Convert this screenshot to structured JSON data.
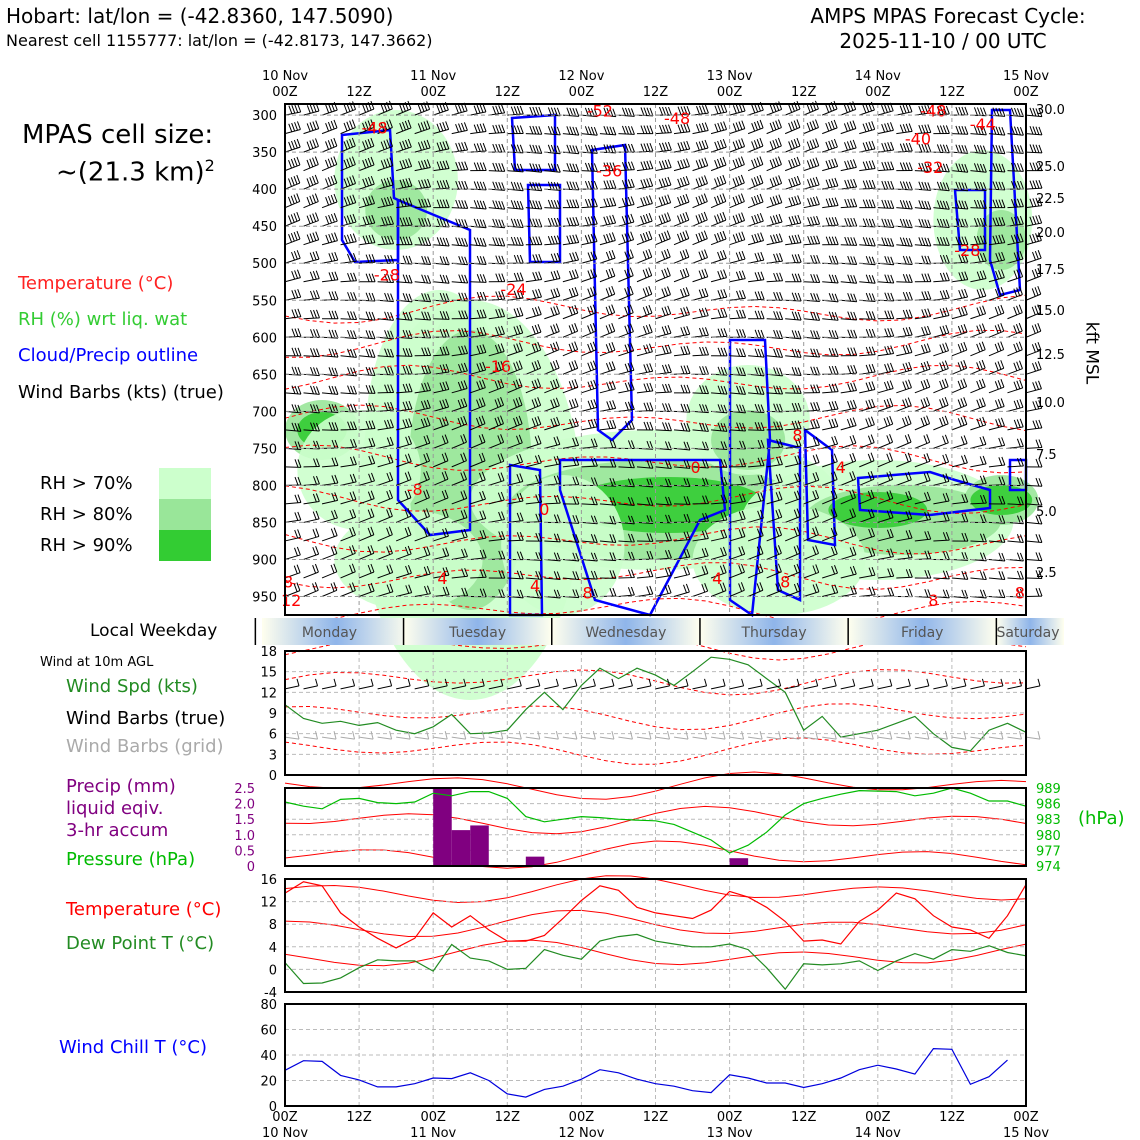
{
  "header": {
    "location_line": "Hobart: lat/lon = (-42.8360, 147.5090)",
    "cell_line": "Nearest cell 1155777: lat/lon = (-42.8173, 147.3662)",
    "forecast_title": "AMPS MPAS Forecast Cycle:",
    "forecast_cycle": "2025-11-10 / 00 UTC"
  },
  "cell_size": {
    "label": "MPAS cell size:",
    "value": "~(21.3 km)",
    "exponent": "2"
  },
  "legend": {
    "temperature": "Temperature (°C)",
    "rh": "RH (%) wrt liq. wat",
    "cloud": "Cloud/Precip outline",
    "wind": "Wind Barbs (kts) (true)",
    "rh70": "RH > 70%",
    "rh80": "RH > 80%",
    "rh90": "RH > 90%"
  },
  "colors": {
    "temp": "#ff0000",
    "rh": "#33cc33",
    "cloud": "#0000ff",
    "rh70": "#ccffcc",
    "rh80": "#99e699",
    "rh90": "#33cc33",
    "precip": "#800080",
    "pressure": "#00aa00",
    "windspd": "#228b22",
    "windchill": "#0000dd",
    "dewpoint": "#228b22",
    "grey": "#aaaaaa"
  },
  "weekday": {
    "label": "Local Weekday",
    "days": [
      "Monday",
      "Tuesday",
      "Wednesday",
      "Thursday",
      "Friday",
      "Saturday"
    ]
  },
  "panel2_legend": {
    "title": "Wind at 10m AGL",
    "spd": "Wind Spd (kts)",
    "barbs_true": "Wind Barbs (true)",
    "barbs_grid": "Wind Barbs (grid)"
  },
  "panel3_legend": {
    "precip1": "Precip (mm)",
    "precip2": "liquid eqiv.",
    "precip3": "3-hr accum",
    "pressure": "Pressure (hPa)",
    "unit": "(hPa)"
  },
  "panel4_legend": {
    "temp": "Temperature (°C)",
    "dew": "Dew Point T (°C)"
  },
  "panel5_legend": {
    "windchill": "Wind Chill T (°C)"
  },
  "chart_data": [
    {
      "type": "heatmap",
      "name": "cross-section",
      "x_ticks_top": [
        {
          "t": 0,
          "label": "10 Nov\n00Z"
        },
        {
          "t": 12,
          "label": "12Z"
        },
        {
          "t": 24,
          "label": "11 Nov\n00Z"
        },
        {
          "t": 36,
          "label": "12Z"
        },
        {
          "t": 48,
          "label": "12 Nov\n00Z"
        },
        {
          "t": 60,
          "label": "12Z"
        },
        {
          "t": 72,
          "label": "13 Nov\n00Z"
        },
        {
          "t": 84,
          "label": "12Z"
        },
        {
          "t": 96,
          "label": "14 Nov\n00Z"
        },
        {
          "t": 108,
          "label": "12Z"
        },
        {
          "t": 120,
          "label": "15 Nov\n00Z"
        }
      ],
      "y_ticks_hpa": [
        300,
        350,
        400,
        450,
        500,
        550,
        600,
        650,
        700,
        750,
        800,
        850,
        900,
        950
      ],
      "y_ticks_kft": [
        "30.0",
        "25.0",
        "22.5",
        "20.0",
        "17.5",
        "15.0",
        "12.5",
        "10.0",
        "7.5",
        "5.0",
        "2.5"
      ],
      "y_right_label": "kft MSL",
      "ylim_hpa": [
        285,
        975
      ],
      "temp_labels": [
        {
          "t": 14.5,
          "p": 325,
          "text": "-48"
        },
        {
          "t": 51,
          "p": 302,
          "text": "-52"
        },
        {
          "t": 63.5,
          "p": 312,
          "text": "-48"
        },
        {
          "t": 105,
          "p": 302,
          "text": "-48"
        },
        {
          "t": 113,
          "p": 320,
          "text": "-44"
        },
        {
          "t": 102.5,
          "p": 340,
          "text": "-40"
        },
        {
          "t": 52.5,
          "p": 383,
          "text": "-36"
        },
        {
          "t": 104.5,
          "p": 378,
          "text": "-32"
        },
        {
          "t": 110.5,
          "p": 490,
          "text": "-28"
        },
        {
          "t": 16.5,
          "p": 523,
          "text": "-28"
        },
        {
          "t": 37,
          "p": 543,
          "text": "-24"
        },
        {
          "t": 34.5,
          "p": 647,
          "text": "-16"
        },
        {
          "t": 66.5,
          "p": 783,
          "text": "0"
        },
        {
          "t": 21,
          "p": 813,
          "text": "-8"
        },
        {
          "t": 42,
          "p": 840,
          "text": "0"
        },
        {
          "t": 83,
          "p": 740,
          "text": "8"
        },
        {
          "t": 90,
          "p": 783,
          "text": "4"
        },
        {
          "t": 0.5,
          "p": 938,
          "text": "8"
        },
        {
          "t": 1,
          "p": 963,
          "text": "12"
        },
        {
          "t": 25.5,
          "p": 933,
          "text": "4"
        },
        {
          "t": 40.5,
          "p": 943,
          "text": "4"
        },
        {
          "t": 49,
          "p": 953,
          "text": "8"
        },
        {
          "t": 70,
          "p": 933,
          "text": "4"
        },
        {
          "t": 81,
          "p": 938,
          "text": "8"
        },
        {
          "t": 105,
          "p": 963,
          "text": "8"
        },
        {
          "t": 119,
          "p": 953,
          "text": "8"
        }
      ]
    },
    {
      "type": "line",
      "name": "wind-10m",
      "ylim": [
        0,
        18
      ],
      "yticks": [
        0,
        3,
        6,
        9,
        12,
        15,
        18
      ],
      "series": [
        {
          "name": "Wind Spd (kts)",
          "x": [
            0,
            3,
            6,
            9,
            12,
            15,
            18,
            21,
            24,
            27,
            30,
            33,
            36,
            39,
            42,
            45,
            48,
            51,
            54,
            57,
            60,
            63,
            66,
            69,
            72,
            75,
            78,
            81,
            84,
            87,
            90,
            93,
            96,
            99,
            102,
            105,
            108,
            111,
            114,
            117,
            120
          ],
          "values": [
            10.2,
            8.2,
            7.5,
            7.8,
            7.2,
            7.6,
            6.5,
            6,
            7,
            8.8,
            6,
            6.1,
            6.5,
            9.5,
            12,
            9.5,
            13,
            15.5,
            14,
            15.5,
            14.5,
            13,
            15,
            17.1,
            16.8,
            16,
            14,
            12,
            6.5,
            8.5,
            5.5,
            6,
            6.5,
            7.5,
            8.5,
            6,
            4,
            3.5,
            6.5,
            7.5,
            6.2
          ]
        }
      ]
    },
    {
      "type": "bar",
      "name": "precip-pressure",
      "precip_ylim": [
        0,
        2.5
      ],
      "precip_yticks": [
        "0",
        "0.5",
        "1.0",
        "1.5",
        "2.0",
        "2.5"
      ],
      "pressure_ylim": [
        974,
        989
      ],
      "pressure_yticks": [
        974,
        977,
        980,
        983,
        986,
        989
      ],
      "precip": [
        {
          "t": 24,
          "w": 3,
          "v": 2.5
        },
        {
          "t": 27,
          "w": 3,
          "v": 1.15
        },
        {
          "t": 30,
          "w": 3,
          "v": 1.3
        },
        {
          "t": 39,
          "w": 3,
          "v": 0.3
        },
        {
          "t": 72,
          "w": 3,
          "v": 0.25
        }
      ],
      "pressure": {
        "x": [
          0,
          3,
          6,
          9,
          12,
          15,
          18,
          21,
          24,
          27,
          30,
          33,
          36,
          39,
          42,
          45,
          48,
          51,
          54,
          57,
          60,
          63,
          66,
          69,
          72,
          75,
          78,
          81,
          84,
          87,
          90,
          93,
          96,
          99,
          102,
          105,
          108,
          111,
          114,
          117,
          120
        ],
        "values": [
          986.3,
          985.5,
          985,
          986.8,
          987,
          986.2,
          986,
          986.3,
          988,
          987.5,
          988.3,
          988.3,
          987,
          983.5,
          982.5,
          983,
          983.5,
          983.3,
          983,
          982.8,
          982.7,
          982,
          980.5,
          979,
          976.5,
          978,
          980.5,
          983.8,
          986,
          987,
          987.8,
          988.5,
          988.4,
          988.3,
          987.5,
          988,
          989,
          988,
          986.5,
          986.5,
          985.5
        ]
      }
    },
    {
      "type": "line",
      "name": "temperature",
      "ylim": [
        -4,
        16
      ],
      "yticks": [
        -4,
        0,
        4,
        8,
        12,
        16
      ],
      "series": [
        {
          "name": "Temperature (°C)",
          "x": [
            0,
            3,
            6,
            9,
            12,
            15,
            18,
            21,
            24,
            27,
            30,
            33,
            36,
            39,
            42,
            45,
            48,
            51,
            54,
            57,
            60,
            63,
            66,
            69,
            72,
            75,
            78,
            81,
            84,
            87,
            90,
            93,
            96,
            99,
            102,
            105,
            108,
            111,
            114,
            117,
            120
          ],
          "values": [
            13.5,
            15.5,
            14.8,
            10,
            7.5,
            5.5,
            3.8,
            5.5,
            10,
            7.5,
            9.5,
            7,
            5,
            5,
            6,
            9,
            12.2,
            14.8,
            14,
            11,
            10,
            9.5,
            9,
            10.5,
            13.8,
            12.8,
            11,
            8.5,
            5,
            5.2,
            4.5,
            8.5,
            10.5,
            13.5,
            12.5,
            9.5,
            7.5,
            7,
            5.5,
            9.5,
            15
          ]
        },
        {
          "name": "Dew Point T (°C)",
          "x": [
            0,
            3,
            6,
            9,
            12,
            15,
            18,
            21,
            24,
            27,
            30,
            33,
            36,
            39,
            42,
            45,
            48,
            51,
            54,
            57,
            60,
            63,
            66,
            69,
            72,
            75,
            78,
            81,
            84,
            87,
            90,
            93,
            96,
            99,
            102,
            105,
            108,
            111,
            114,
            117,
            120
          ],
          "values": [
            1.2,
            -2.5,
            -2.4,
            -1.5,
            0.3,
            1.7,
            1.5,
            1.5,
            -0.3,
            4.4,
            2,
            1.5,
            0,
            0.2,
            3.5,
            2.5,
            1.8,
            5,
            5.8,
            6.2,
            5,
            4.5,
            4,
            4,
            4.5,
            3.5,
            0.3,
            -3.5,
            1,
            0.8,
            1,
            1.5,
            -0.2,
            1.5,
            2.8,
            1.8,
            3.5,
            3.2,
            4.2,
            3,
            2.4
          ]
        }
      ]
    },
    {
      "type": "line",
      "name": "wind-chill",
      "ylim": [
        0,
        80
      ],
      "yticks": [
        0,
        20,
        40,
        60,
        80
      ],
      "series": [
        {
          "name": "Wind Chill T (°C)",
          "x": [
            0,
            3,
            6,
            9,
            12,
            15,
            18,
            21,
            24,
            27,
            30,
            33,
            36,
            39,
            42,
            45,
            48,
            51,
            54,
            57,
            60,
            63,
            66,
            69,
            72,
            75,
            78,
            81,
            84,
            87,
            90,
            93,
            96,
            99,
            102,
            105,
            108,
            111,
            114,
            117,
            120
          ],
          "values": [
            28,
            35.5,
            35,
            24,
            20.5,
            15,
            15,
            17.5,
            22,
            21.5,
            26,
            20,
            9.5,
            7,
            13,
            15.5,
            21,
            28.5,
            26,
            21,
            17.5,
            15.5,
            12,
            10.5,
            24.5,
            22,
            18,
            18,
            14.5,
            17.5,
            22,
            28.5,
            32,
            29,
            25,
            45,
            44.5,
            17,
            23,
            36,
            null
          ]
        }
      ]
    }
  ],
  "bottom_x_ticks": [
    {
      "t": 0,
      "l1": "00Z",
      "l2": "10 Nov"
    },
    {
      "t": 12,
      "l1": "12Z",
      "l2": ""
    },
    {
      "t": 24,
      "l1": "00Z",
      "l2": "11 Nov"
    },
    {
      "t": 36,
      "l1": "12Z",
      "l2": ""
    },
    {
      "t": 48,
      "l1": "00Z",
      "l2": "12 Nov"
    },
    {
      "t": 60,
      "l1": "12Z",
      "l2": ""
    },
    {
      "t": 72,
      "l1": "00Z",
      "l2": "13 Nov"
    },
    {
      "t": 84,
      "l1": "12Z",
      "l2": ""
    },
    {
      "t": 96,
      "l1": "00Z",
      "l2": "14 Nov"
    },
    {
      "t": 108,
      "l1": "12Z",
      "l2": ""
    },
    {
      "t": 120,
      "l1": "00Z",
      "l2": "15 Nov"
    }
  ]
}
